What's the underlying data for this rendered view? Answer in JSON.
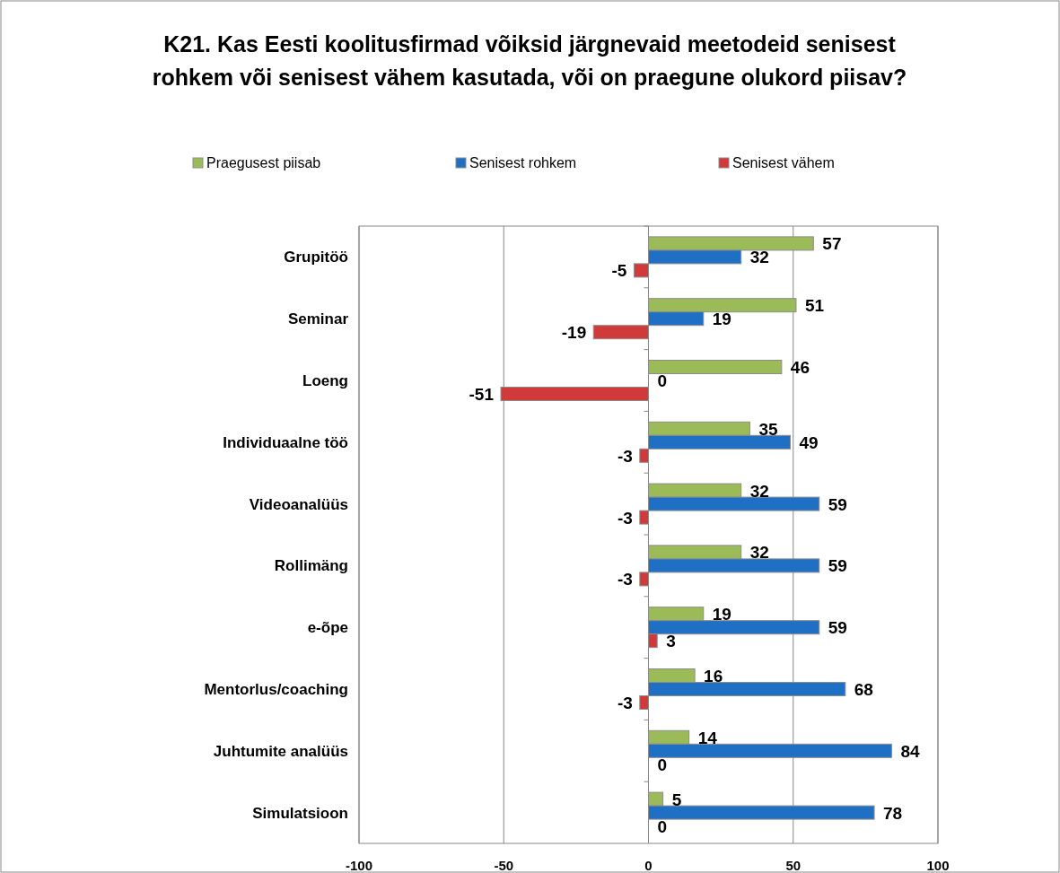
{
  "chart_data": {
    "type": "bar",
    "orientation": "horizontal",
    "title": "K21. Kas Eesti koolitusfirmad võiksid järgnevaid meetodeid senisest rohkem või senisest vähem kasutada, või on praegune olukord piisav?",
    "categories": [
      "Grupitöö",
      "Seminar",
      "Loeng",
      "Individuaalne töö",
      "Videoanalüüs",
      "Rollimäng",
      "e-õpe",
      "Mentorlus/coaching",
      "Juhtumite analüüs",
      "Simulatsioon"
    ],
    "series": [
      {
        "name": "Praegusest piisab",
        "color": "#9bbb59",
        "values": [
          57,
          51,
          46,
          35,
          32,
          32,
          19,
          16,
          14,
          5
        ]
      },
      {
        "name": "Senisest rohkem",
        "color": "#1f6fc5",
        "values": [
          32,
          19,
          0,
          49,
          59,
          59,
          59,
          68,
          84,
          78
        ]
      },
      {
        "name": "Senisest vähem",
        "color": "#d03a3a",
        "values": [
          -5,
          -19,
          -51,
          -3,
          -3,
          -3,
          3,
          -3,
          0,
          0
        ]
      }
    ],
    "xlim": [
      -100,
      100
    ],
    "xticks": [
      -100,
      -50,
      0,
      50,
      100
    ],
    "grid": "x",
    "legend": "top",
    "data_labels": true
  }
}
